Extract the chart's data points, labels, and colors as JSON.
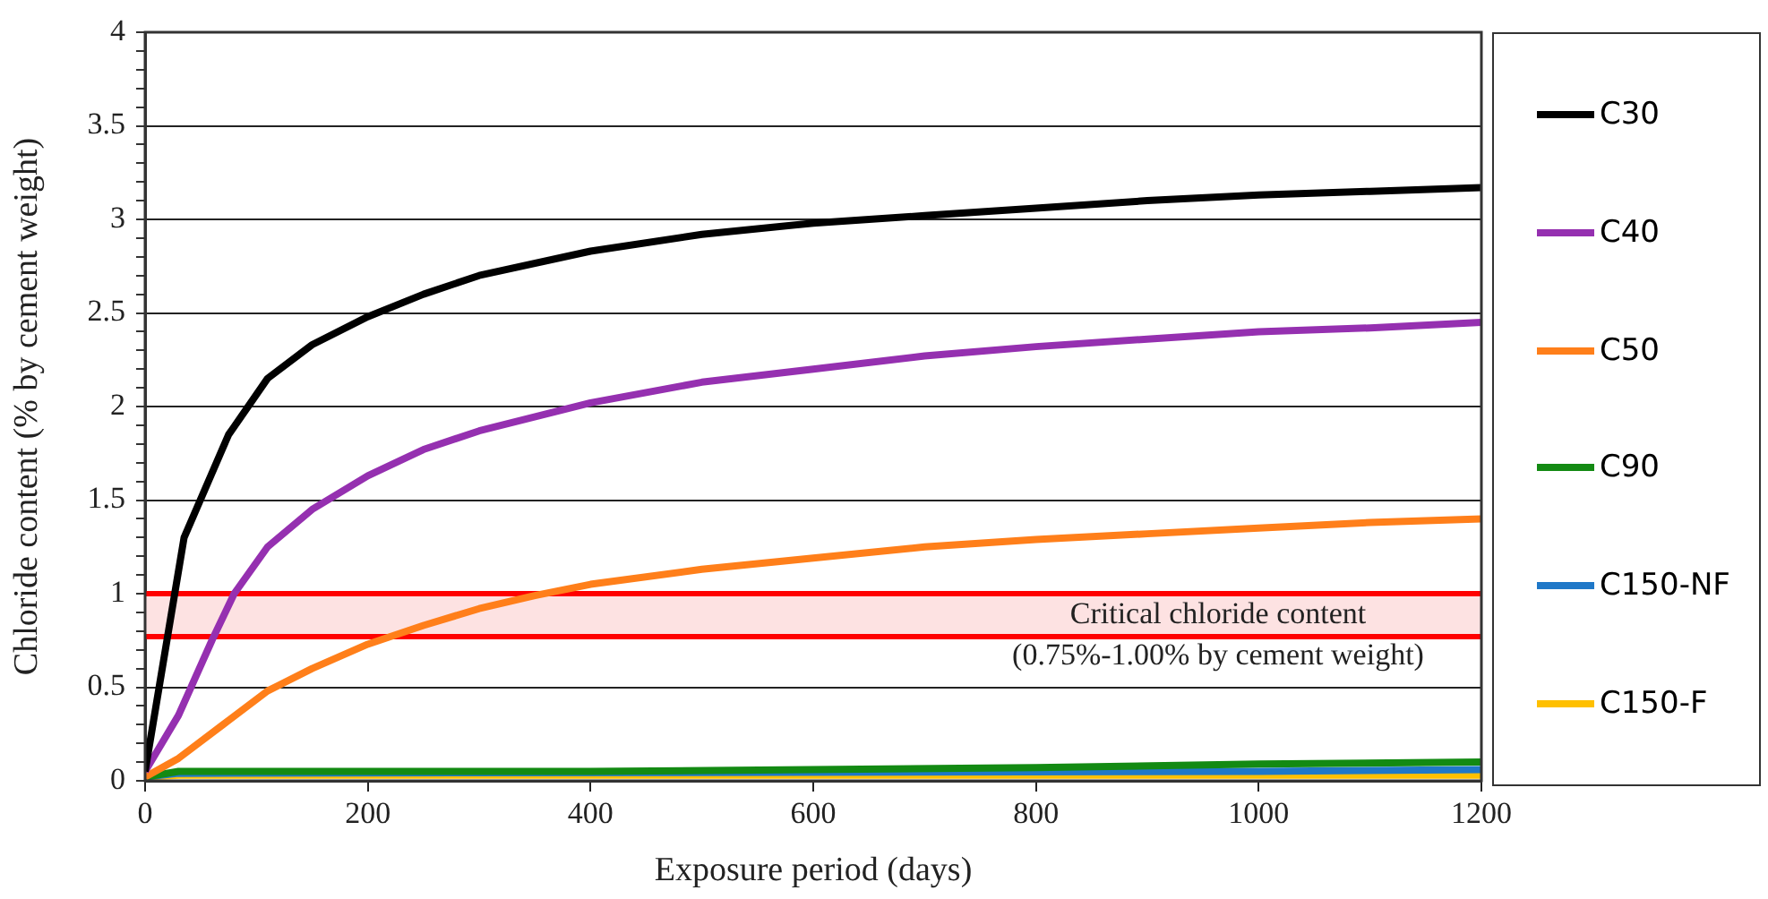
{
  "chart_data": {
    "type": "line",
    "xlabel": "Exposure period (days)",
    "ylabel": "Chloride content (% by cement weight)",
    "xlim": [
      0,
      1200
    ],
    "xticks": [
      0,
      200,
      400,
      600,
      800,
      1000,
      1200
    ],
    "ylim": [
      0,
      4
    ],
    "yticks": [
      0,
      {
        "value": 0.1,
        "label": null
      },
      {
        "value": 0.2,
        "label": null
      },
      {
        "value": 0.3,
        "label": null
      },
      {
        "value": 0.4,
        "label": null
      },
      0.5,
      {
        "value": 0.6,
        "label": null
      },
      {
        "value": 0.7,
        "label": null
      },
      {
        "value": 0.8,
        "label": null
      },
      {
        "value": 0.9,
        "label": null
      },
      1,
      {
        "value": 1.1,
        "label": null
      },
      {
        "value": 1.2,
        "label": null
      },
      {
        "value": 1.3,
        "label": null
      },
      {
        "value": 1.4,
        "label": null
      },
      1.5,
      {
        "value": 1.6,
        "label": null
      },
      {
        "value": 1.7,
        "label": null
      },
      {
        "value": 1.8,
        "label": null
      },
      {
        "value": 1.9,
        "label": null
      },
      2,
      {
        "value": 2.1,
        "label": null
      },
      {
        "value": 2.2,
        "label": null
      },
      {
        "value": 2.3,
        "label": null
      },
      {
        "value": 2.4,
        "label": null
      },
      2.5,
      {
        "value": 2.6,
        "label": null
      },
      {
        "value": 2.7,
        "label": null
      },
      {
        "value": 2.8,
        "label": null
      },
      {
        "value": 2.9,
        "label": null
      },
      3,
      {
        "value": 3.1,
        "label": null
      },
      {
        "value": 3.2,
        "label": null
      },
      {
        "value": 3.3,
        "label": null
      },
      {
        "value": 3.4,
        "label": null
      },
      3.5,
      {
        "value": 3.6,
        "label": null
      },
      {
        "value": 3.7,
        "label": null
      },
      {
        "value": 3.8,
        "label": null
      },
      {
        "value": 3.9,
        "label": null
      },
      4
    ],
    "grid": "y",
    "legend": "right",
    "marker": "none",
    "line_style": "solid",
    "series": [
      {
        "name": "C30",
        "color": "#000000",
        "x": [
          0,
          35,
          75,
          110,
          150,
          200,
          250,
          300,
          400,
          500,
          600,
          700,
          800,
          900,
          1000,
          1100,
          1200
        ],
        "values": [
          0.05,
          1.3,
          1.85,
          2.15,
          2.33,
          2.48,
          2.6,
          2.7,
          2.83,
          2.92,
          2.98,
          3.02,
          3.06,
          3.1,
          3.13,
          3.15,
          3.17
        ]
      },
      {
        "name": "C40",
        "color": "#9530b0",
        "x": [
          0,
          30,
          60,
          80,
          110,
          150,
          200,
          250,
          300,
          400,
          500,
          600,
          700,
          800,
          900,
          1000,
          1100,
          1200
        ],
        "values": [
          0.05,
          0.35,
          0.75,
          1.0,
          1.25,
          1.45,
          1.63,
          1.77,
          1.87,
          2.02,
          2.13,
          2.2,
          2.27,
          2.32,
          2.36,
          2.4,
          2.42,
          2.45
        ]
      },
      {
        "name": "C50",
        "color": "#ff7f1a",
        "x": [
          0,
          30,
          70,
          110,
          150,
          200,
          250,
          300,
          350,
          400,
          500,
          600,
          700,
          800,
          900,
          1000,
          1100,
          1200
        ],
        "values": [
          0.02,
          0.12,
          0.3,
          0.48,
          0.6,
          0.73,
          0.83,
          0.92,
          0.99,
          1.05,
          1.13,
          1.19,
          1.25,
          1.29,
          1.32,
          1.35,
          1.38,
          1.4
        ]
      },
      {
        "name": "C90",
        "color": "#138a13",
        "x": [
          0,
          30,
          400,
          800,
          1000,
          1200
        ],
        "values": [
          0.02,
          0.05,
          0.05,
          0.07,
          0.09,
          0.1
        ]
      },
      {
        "name": "C150-NF",
        "color": "#1f78c8",
        "x": [
          0,
          30,
          1000,
          1200
        ],
        "values": [
          0.02,
          0.04,
          0.05,
          0.06
        ]
      },
      {
        "name": "C150-F",
        "color": "#ffc000",
        "x": [
          0,
          30,
          1200
        ],
        "values": [
          0.02,
          0.03,
          0.03
        ]
      }
    ],
    "ref_lines": [
      {
        "axis": "y",
        "value": 1,
        "color": "#ff0000"
      },
      {
        "axis": "y",
        "value": 0.77,
        "color": "#ff0000"
      }
    ],
    "bands": [
      {
        "axis": "y",
        "from": 0.77,
        "to": 1,
        "color": "#fde2e2",
        "label": "Critical chloride content\n(0.75%-1.00% by cement weight)"
      }
    ]
  }
}
